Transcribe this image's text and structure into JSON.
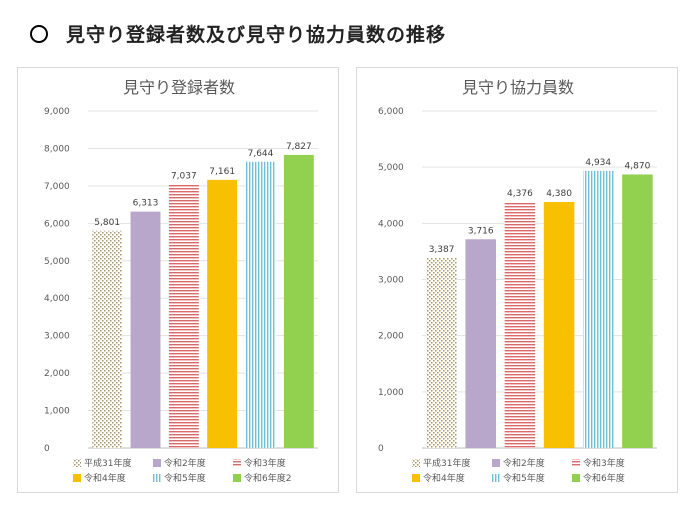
{
  "page_title": "見守り登録者数及び見守り協力員数の推移",
  "colors": {
    "dotted": "#a89466",
    "purple": "#b8a6cb",
    "red_stripe": "#d9696a",
    "gold": "#f7c000",
    "blue_stripe": "#6fc1d8",
    "green": "#92d050"
  },
  "chart_data": [
    {
      "type": "bar",
      "title": "見守り登録者数",
      "categories": [
        "平成31年度",
        "令和2年度",
        "令和3年度",
        "令和4年度",
        "令和5年度",
        "令和6年度2"
      ],
      "values": [
        5801,
        6313,
        7037,
        7161,
        7644,
        7827
      ],
      "value_labels": [
        "5,801",
        "6,313",
        "7,037",
        "7,161",
        "7,644",
        "7,827"
      ],
      "yticks": [
        "0",
        "1,000",
        "2,000",
        "3,000",
        "4,000",
        "5,000",
        "6,000",
        "7,000",
        "8,000",
        "9,000"
      ],
      "ylim": [
        0,
        9000
      ],
      "grid": true,
      "legend": "bottom"
    },
    {
      "type": "bar",
      "title": "見守り協力員数",
      "categories": [
        "平成31年度",
        "令和2年度",
        "令和3年度",
        "令和4年度",
        "令和5年度",
        "令和6年度"
      ],
      "values": [
        3387,
        3716,
        4376,
        4380,
        4934,
        4870
      ],
      "value_labels": [
        "3,387",
        "3,716",
        "4,376",
        "4,380",
        "4,934",
        "4,870"
      ],
      "yticks": [
        "0",
        "1,000",
        "2,000",
        "3,000",
        "4,000",
        "5,000",
        "6,000"
      ],
      "ylim": [
        0,
        6000
      ],
      "grid": true,
      "legend": "bottom"
    }
  ]
}
